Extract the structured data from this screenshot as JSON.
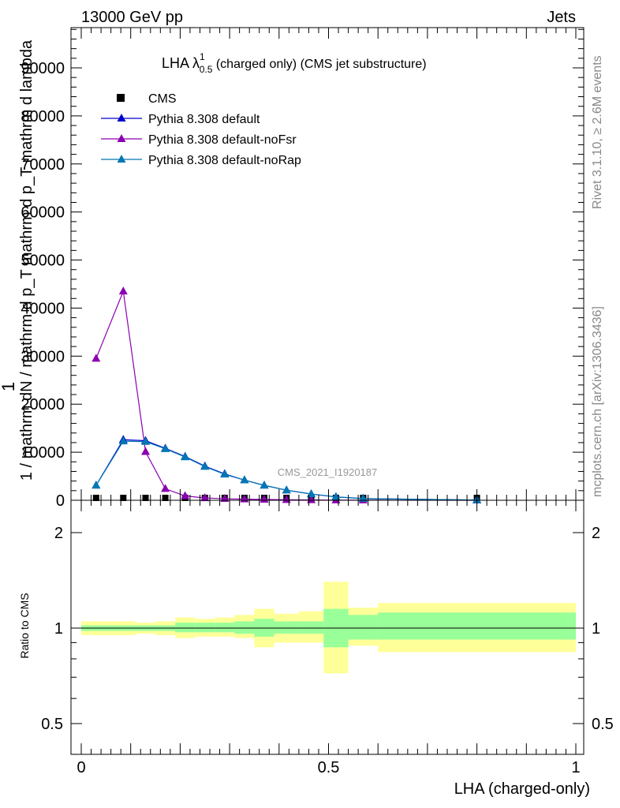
{
  "header": {
    "left": "13000 GeV pp",
    "right": "Jets",
    "side_right_top": "Rivet 3.1.10, ≥ 2.6M events",
    "side_right_bottom": "mcplots.cern.ch [arXiv:1306.3436]",
    "watermark": "CMS_2021_I1920187"
  },
  "title_main": "LHA λ",
  "title_sup": "1",
  "title_sub": "0.5",
  "title_rest": " (charged only) (CMS jet substructure)",
  "ylabel_top": {
    "numerator_line1": "mathrm d",
    "numerator_N": "N",
    "denominator": "mathrm d p",
    "denominator_sub": "T",
    "denominator_rest": " mathrm d lambda",
    "prefix_1": "1"
  },
  "ylabel_full": "1 / mathrm dN / mathrm d p_T mathrm d p_T mathrm d lambda",
  "ratio_ylabel": "Ratio to CMS",
  "xlabel": "LHA (charged-only)",
  "legend": [
    {
      "label": "CMS",
      "marker": "square",
      "color": "#000000"
    },
    {
      "label": "Pythia 8.308 default",
      "marker": "triangle",
      "color": "#0000cc"
    },
    {
      "label": "Pythia 8.308 default-noFsr",
      "marker": "triangle",
      "color": "#8b00b0"
    },
    {
      "label": "Pythia 8.308 default-noRap",
      "marker": "triangle",
      "color": "#0077b3"
    }
  ],
  "chart_data": [
    {
      "type": "line",
      "panel": "main",
      "xlim": [
        0,
        1
      ],
      "ylim": [
        0,
        98000
      ],
      "ytick_values": [
        0,
        10000,
        20000,
        30000,
        40000,
        50000,
        60000,
        70000,
        80000,
        90000
      ],
      "ytick_labels": [
        "0",
        "10000",
        "20000",
        "30000",
        "40000",
        "50000",
        "60000",
        "70000",
        "80000",
        "90000"
      ],
      "xtick_values": [
        0,
        0.5,
        1
      ],
      "xtick_labels": [
        "0",
        "0.5",
        "1"
      ],
      "x": [
        0.03,
        0.085,
        0.13,
        0.17,
        0.21,
        0.25,
        0.29,
        0.33,
        0.37,
        0.415,
        0.465,
        0.515,
        0.57,
        0.8
      ],
      "series": [
        {
          "name": "CMS",
          "kind": "points",
          "color": "#000000",
          "values": [
            120,
            160,
            150,
            130,
            110,
            90,
            70,
            55,
            45,
            30,
            20,
            12,
            8,
            2
          ]
        },
        {
          "name": "Pythia 8.308 default",
          "kind": "line",
          "color": "#0000cc",
          "values": [
            3100,
            12600,
            12400,
            10800,
            9100,
            7100,
            5500,
            4200,
            3100,
            2100,
            1300,
            700,
            350,
            40
          ]
        },
        {
          "name": "Pythia 8.308 default-noFsr",
          "kind": "line",
          "color": "#8b00b0",
          "values": [
            29500,
            43500,
            10100,
            2400,
            900,
            480,
            320,
            220,
            160,
            100,
            60,
            30,
            15,
            2
          ]
        },
        {
          "name": "Pythia 8.308 default-noRap",
          "kind": "line",
          "color": "#0077b3",
          "values": [
            3100,
            12300,
            12200,
            10700,
            9000,
            7000,
            5400,
            4200,
            3100,
            2100,
            1300,
            700,
            350,
            40
          ]
        }
      ]
    },
    {
      "type": "area",
      "panel": "ratio",
      "ylim": [
        0.35,
        2.3
      ],
      "log_scale": true,
      "ytick_values": [
        0.5,
        1,
        2
      ],
      "ytick_labels": [
        "0.5",
        "1",
        "2"
      ],
      "reference_line": 1,
      "bins": [
        {
          "x0": 0.0,
          "x1": 0.06,
          "stat_lo": 0.98,
          "stat_hi": 1.02,
          "tot_lo": 0.95,
          "tot_hi": 1.05
        },
        {
          "x0": 0.06,
          "x1": 0.11,
          "stat_lo": 0.98,
          "stat_hi": 1.02,
          "tot_lo": 0.95,
          "tot_hi": 1.05
        },
        {
          "x0": 0.11,
          "x1": 0.15,
          "stat_lo": 0.98,
          "stat_hi": 1.02,
          "tot_lo": 0.96,
          "tot_hi": 1.04
        },
        {
          "x0": 0.15,
          "x1": 0.19,
          "stat_lo": 0.98,
          "stat_hi": 1.02,
          "tot_lo": 0.95,
          "tot_hi": 1.05
        },
        {
          "x0": 0.19,
          "x1": 0.23,
          "stat_lo": 0.97,
          "stat_hi": 1.04,
          "tot_lo": 0.93,
          "tot_hi": 1.08
        },
        {
          "x0": 0.23,
          "x1": 0.27,
          "stat_lo": 0.97,
          "stat_hi": 1.04,
          "tot_lo": 0.94,
          "tot_hi": 1.07
        },
        {
          "x0": 0.27,
          "x1": 0.31,
          "stat_lo": 0.97,
          "stat_hi": 1.04,
          "tot_lo": 0.94,
          "tot_hi": 1.08
        },
        {
          "x0": 0.31,
          "x1": 0.35,
          "stat_lo": 0.96,
          "stat_hi": 1.05,
          "tot_lo": 0.93,
          "tot_hi": 1.1
        },
        {
          "x0": 0.35,
          "x1": 0.39,
          "stat_lo": 0.94,
          "stat_hi": 1.07,
          "tot_lo": 0.87,
          "tot_hi": 1.15
        },
        {
          "x0": 0.39,
          "x1": 0.44,
          "stat_lo": 0.96,
          "stat_hi": 1.05,
          "tot_lo": 0.9,
          "tot_hi": 1.11
        },
        {
          "x0": 0.44,
          "x1": 0.49,
          "stat_lo": 0.96,
          "stat_hi": 1.05,
          "tot_lo": 0.9,
          "tot_hi": 1.13
        },
        {
          "x0": 0.49,
          "x1": 0.54,
          "stat_lo": 0.87,
          "stat_hi": 1.15,
          "tot_lo": 0.72,
          "tot_hi": 1.4
        },
        {
          "x0": 0.54,
          "x1": 0.6,
          "stat_lo": 0.92,
          "stat_hi": 1.1,
          "tot_lo": 0.88,
          "tot_hi": 1.16
        },
        {
          "x0": 0.6,
          "x1": 1.0,
          "stat_lo": 0.92,
          "stat_hi": 1.12,
          "tot_lo": 0.84,
          "tot_hi": 1.2
        }
      ],
      "stat_color": "#99ff99",
      "total_color": "#ffff99"
    }
  ]
}
